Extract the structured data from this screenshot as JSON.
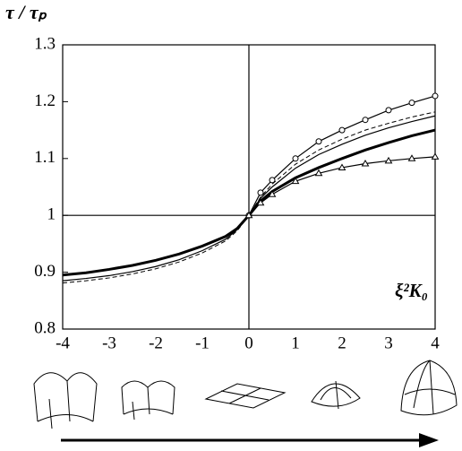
{
  "chart_data": {
    "type": "line",
    "y_label": "τ / τₚ",
    "x_label": "ξ²K₀",
    "x": [
      -4,
      -3.5,
      -3,
      -2.5,
      -2,
      -1.5,
      -1,
      -0.5,
      -0.25,
      0,
      0.25,
      0.5,
      1,
      1.5,
      2,
      2.5,
      3,
      3.5,
      4
    ],
    "series": [
      {
        "color": "#000",
        "style": "thick",
        "values": [
          0.895,
          0.899,
          0.905,
          0.912,
          0.921,
          0.932,
          0.946,
          0.963,
          0.977,
          1.0,
          1.025,
          1.042,
          1.066,
          1.084,
          1.1,
          1.115,
          1.128,
          1.14,
          1.15
        ]
      },
      {
        "color": "#000",
        "style": "thin",
        "values": [
          0.885,
          0.889,
          0.894,
          0.901,
          0.91,
          0.922,
          0.938,
          0.958,
          0.975,
          1.0,
          1.03,
          1.05,
          1.083,
          1.107,
          1.125,
          1.141,
          1.154,
          1.165,
          1.175
        ]
      },
      {
        "color": "#000",
        "style": "dashed",
        "values": [
          0.881,
          0.885,
          0.89,
          0.897,
          0.906,
          0.918,
          0.934,
          0.955,
          0.973,
          1.0,
          1.032,
          1.055,
          1.09,
          1.115,
          1.134,
          1.15,
          1.162,
          1.173,
          1.182
        ]
      },
      {
        "color": "#000",
        "style": "thin",
        "marker": "circle",
        "values": [
          null,
          null,
          null,
          null,
          null,
          null,
          null,
          null,
          null,
          1.0,
          1.04,
          1.062,
          1.1,
          1.13,
          1.15,
          1.168,
          1.185,
          1.198,
          1.21
        ]
      },
      {
        "color": "#000",
        "style": "thin",
        "marker": "triangle",
        "values": [
          null,
          null,
          null,
          null,
          null,
          null,
          null,
          null,
          null,
          1.0,
          1.022,
          1.037,
          1.06,
          1.074,
          1.084,
          1.091,
          1.096,
          1.1,
          1.103
        ]
      }
    ],
    "xlim": [
      -4,
      4
    ],
    "xticks": [
      -4,
      -3,
      -2,
      -1,
      0,
      1,
      2,
      3,
      4
    ],
    "ylim": [
      0.8,
      1.3
    ],
    "yticks": [
      0.8,
      0.9,
      1,
      1.1,
      1.2,
      1.3
    ],
    "reference_lines": {
      "x": 0,
      "y": 1
    }
  }
}
